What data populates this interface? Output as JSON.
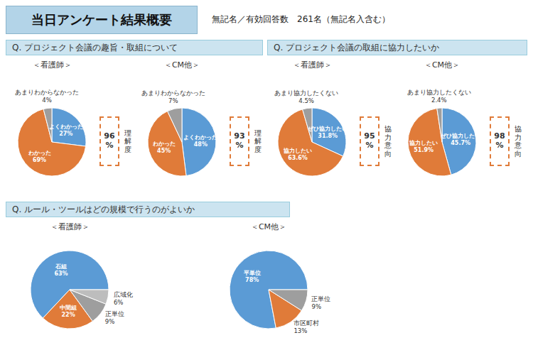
{
  "title": "当日アンケート結果概要",
  "subtitle": "無記名／有効回答数　261名（無記名入含む）",
  "annotations": [
    "Q.  プロジェクト会議の趣旨・取組について",
    "Q.  プロジェクト会議の取組に協力したいか",
    "Q.  ルール・ツールはどの規模で行うのがよいか"
  ],
  "chart_data": [
    {
      "type": "pie",
      "title": "＜看護師＞",
      "categories": [
        "よくわかった",
        "わかった",
        "あまりわからなかった"
      ],
      "values": [
        27,
        69,
        4
      ],
      "value_labels": [
        "27%",
        "69%",
        "4%"
      ],
      "colors": [
        "#5b9bd5",
        "#e07b39",
        "#9e9e9e"
      ],
      "data_labels": true,
      "annotations": [
        "96\n%",
        "理\n解\n度"
      ]
    },
    {
      "type": "pie",
      "title": "＜CM他＞",
      "categories": [
        "よくわかった",
        "わかった",
        "あまりわからなかった"
      ],
      "values": [
        48,
        45,
        7
      ],
      "value_labels": [
        "48%",
        "45%",
        "7%"
      ],
      "colors": [
        "#5b9bd5",
        "#e07b39",
        "#9e9e9e"
      ],
      "data_labels": true,
      "annotations": [
        "93\n%",
        "理\n解\n度"
      ]
    },
    {
      "type": "pie",
      "title": "＜看護師＞",
      "categories": [
        "ぜひ協力したい",
        "協力したい",
        "あまり協力したくない"
      ],
      "values": [
        31.8,
        63.6,
        4.5
      ],
      "value_labels": [
        "31.8%",
        "63.6%",
        "4.5%"
      ],
      "colors": [
        "#5b9bd5",
        "#e07b39",
        "#9e9e9e"
      ],
      "data_labels": true,
      "annotations": [
        "95\n%",
        "協\n力\n意\n向"
      ]
    },
    {
      "type": "pie",
      "title": "＜CM他＞",
      "categories": [
        "ぜひ協力したい",
        "協力したい",
        "あまり協力したくない"
      ],
      "values": [
        45.7,
        51.9,
        2.4
      ],
      "value_labels": [
        "45.7%",
        "51.9%",
        "2.4%"
      ],
      "colors": [
        "#5b9bd5",
        "#e07b39",
        "#9e9e9e"
      ],
      "data_labels": true,
      "annotations": [
        "98\n%",
        "協\n力\n意\n向"
      ]
    },
    {
      "type": "pie",
      "title": "＜看護師＞",
      "categories": [
        "石組",
        "中間組",
        "正単位",
        "広域化"
      ],
      "values": [
        63,
        22,
        9,
        6
      ],
      "value_labels": [
        "63%",
        "22%",
        "9%",
        "6%"
      ],
      "colors": [
        "#5b9bd5",
        "#e07b39",
        "#9e9e9e",
        "#bdbdbd"
      ],
      "data_labels": true
    },
    {
      "type": "pie",
      "title": "＜CM他＞",
      "categories": [
        "平単位",
        "市区町村",
        "正単位"
      ],
      "values": [
        78,
        13,
        9
      ],
      "value_labels": [
        "78%",
        "13%",
        "9%"
      ],
      "colors": [
        "#5b9bd5",
        "#e07b39",
        "#9e9e9e"
      ],
      "data_labels": true
    }
  ]
}
